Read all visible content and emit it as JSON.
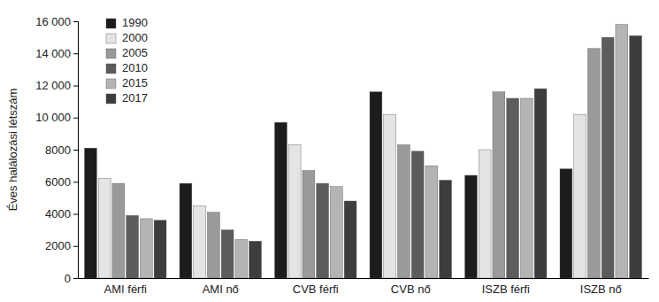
{
  "chart_data": {
    "type": "bar",
    "y_label": "Éves halálozási létszám",
    "categories": [
      "AMI férfi",
      "AMI nő",
      "CVB férfi",
      "CVB nő",
      "ISZB férfi",
      "ISZB nő"
    ],
    "series": [
      {
        "name": "1990",
        "color": "#1c1c1c",
        "values": [
          8100,
          5900,
          9700,
          11600,
          6400,
          6800
        ]
      },
      {
        "name": "2000",
        "color": "#e4e4e4",
        "values": [
          6200,
          4500,
          8300,
          10200,
          8000,
          10200
        ]
      },
      {
        "name": "2005",
        "color": "#9a9a9a",
        "values": [
          5900,
          4100,
          6700,
          8300,
          11600,
          14300
        ]
      },
      {
        "name": "2010",
        "color": "#5c5c5c",
        "values": [
          3900,
          3000,
          5900,
          7900,
          11200,
          15000
        ]
      },
      {
        "name": "2015",
        "color": "#b4b4b4",
        "values": [
          3700,
          2400,
          5700,
          7000,
          11200,
          15800
        ]
      },
      {
        "name": "2017",
        "color": "#3d3d3d",
        "values": [
          3600,
          2300,
          4800,
          6100,
          11800,
          15100
        ]
      }
    ],
    "ylim": [
      0,
      16000
    ],
    "yticks": [
      0,
      2000,
      4000,
      6000,
      8000,
      {
        "value": 10000,
        "label": "10 000"
      },
      {
        "value": 12000,
        "label": "12 000"
      },
      {
        "value": 14000,
        "label": "14 000"
      },
      {
        "value": 16000,
        "label": "16 000"
      }
    ],
    "grid": false,
    "legend": "upper left"
  }
}
